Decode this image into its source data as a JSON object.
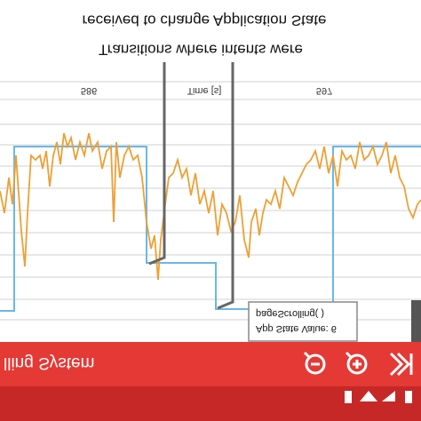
{
  "header": {
    "line1": "Transitions where intents were",
    "line2": "received to change Application State"
  },
  "chart_header": {
    "left": "586",
    "center": "Time [s]",
    "right": "597"
  },
  "tooltip": {
    "line1": "App State Value: 6",
    "line2": "pageScrolling( )"
  },
  "toolbar": {
    "title": "lling System"
  }
}
